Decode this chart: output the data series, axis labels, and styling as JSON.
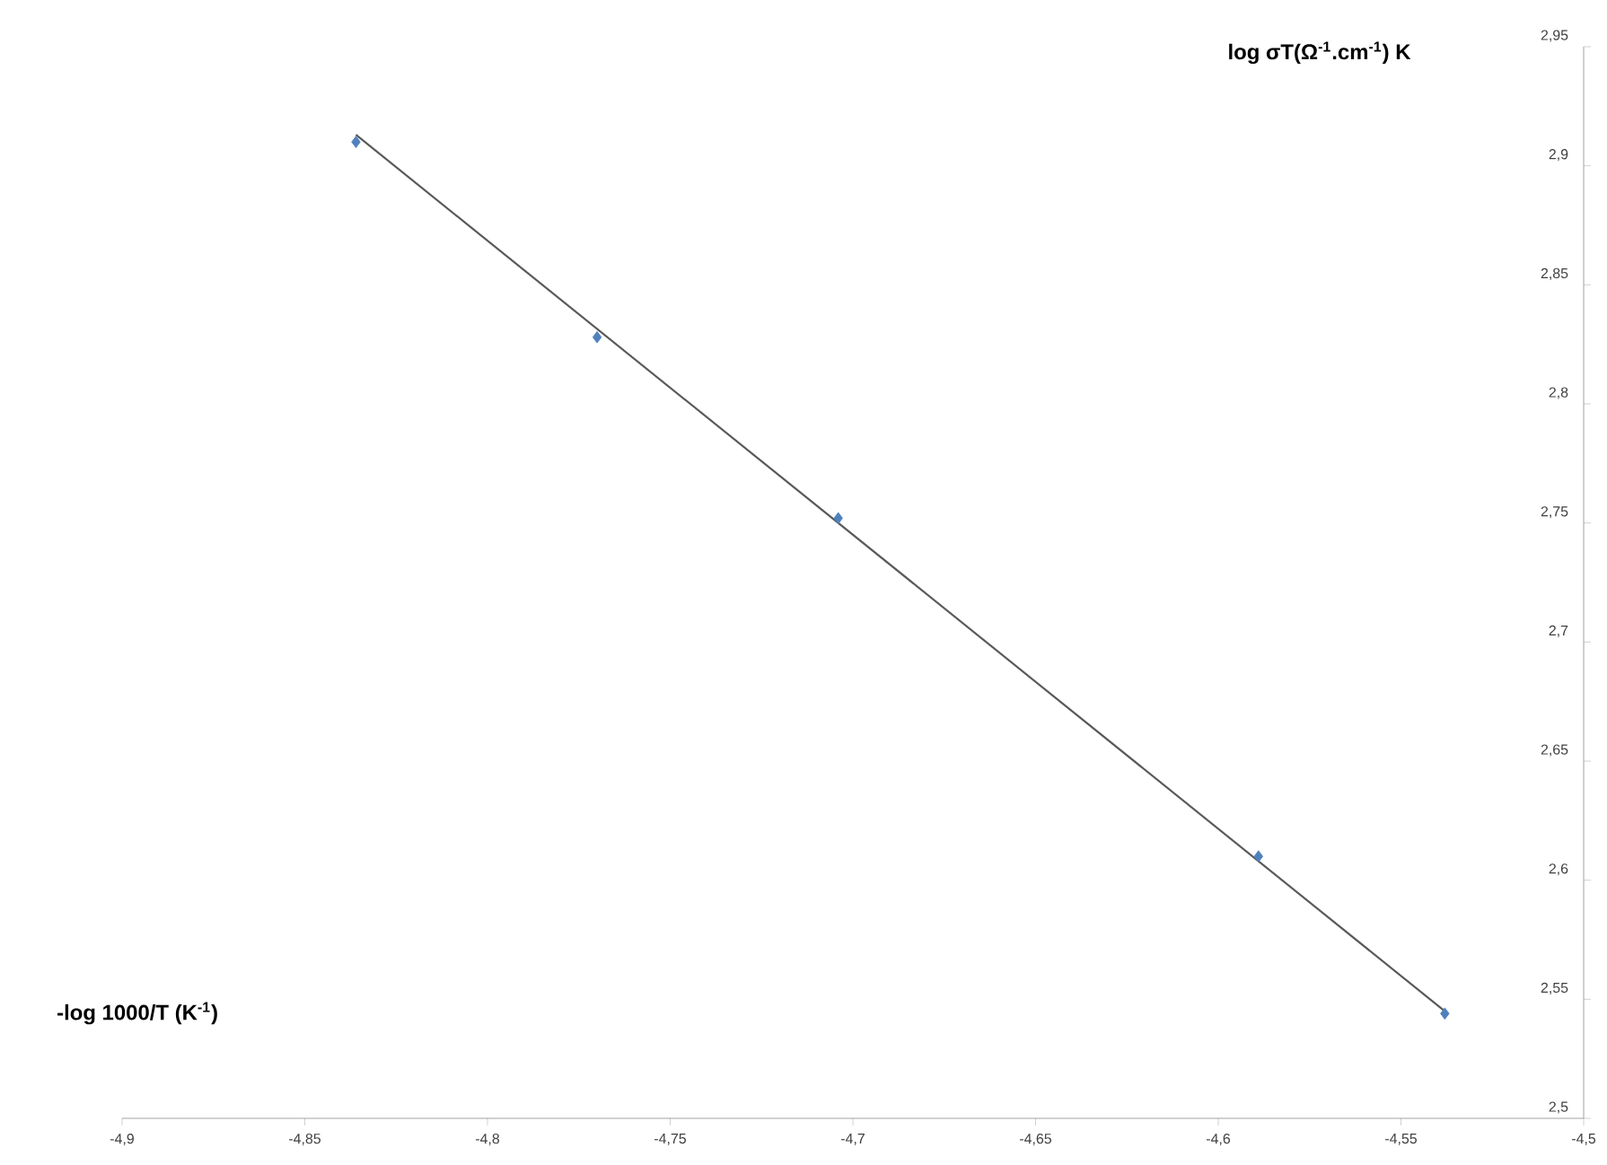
{
  "chart_data": {
    "type": "scatter",
    "xlabel": "-log 1000/T (K$^{-1}$)",
    "ylabel": "log σT(Ω$^{-1}$.cm$^{-1}$) K",
    "series": [
      {
        "type": "line",
        "color": "#595959",
        "marker": "none",
        "x": [
          -4.836,
          -4.538
        ],
        "values": [
          2.913,
          2.545
        ]
      },
      {
        "type": "scatter",
        "color": "#4f81bd",
        "marker": "diamond",
        "x": [
          -4.836,
          -4.77,
          -4.704,
          -4.589,
          -4.538
        ],
        "values": [
          2.91,
          2.828,
          2.752,
          2.61,
          2.544
        ]
      }
    ],
    "xlim": [
      -4.9,
      -4.5
    ],
    "ylim": [
      2.5,
      2.95
    ],
    "xticks": [
      {
        "value": -4.9,
        "label": "-4,9"
      },
      {
        "value": -4.85,
        "label": "-4,85"
      },
      {
        "value": -4.8,
        "label": "-4,8"
      },
      {
        "value": -4.75,
        "label": "-4,75"
      },
      {
        "value": -4.7,
        "label": "-4,7"
      },
      {
        "value": -4.65,
        "label": "-4,65"
      },
      {
        "value": -4.6,
        "label": "-4,6"
      },
      {
        "value": -4.55,
        "label": "-4,55"
      },
      {
        "value": -4.5,
        "label": "-4,5"
      }
    ],
    "yticks": [
      {
        "value": 2.5,
        "label": "2,5"
      },
      {
        "value": 2.55,
        "label": "2,55"
      },
      {
        "value": 2.6,
        "label": "2,6"
      },
      {
        "value": 2.65,
        "label": "2,65"
      },
      {
        "value": 2.7,
        "label": "2,7"
      },
      {
        "value": 2.75,
        "label": "2,75"
      },
      {
        "value": 2.8,
        "label": "2,8"
      },
      {
        "value": 2.85,
        "label": "2,85"
      },
      {
        "value": 2.9,
        "label": "2,9"
      },
      {
        "value": 2.95,
        "label": "2,95"
      }
    ]
  }
}
